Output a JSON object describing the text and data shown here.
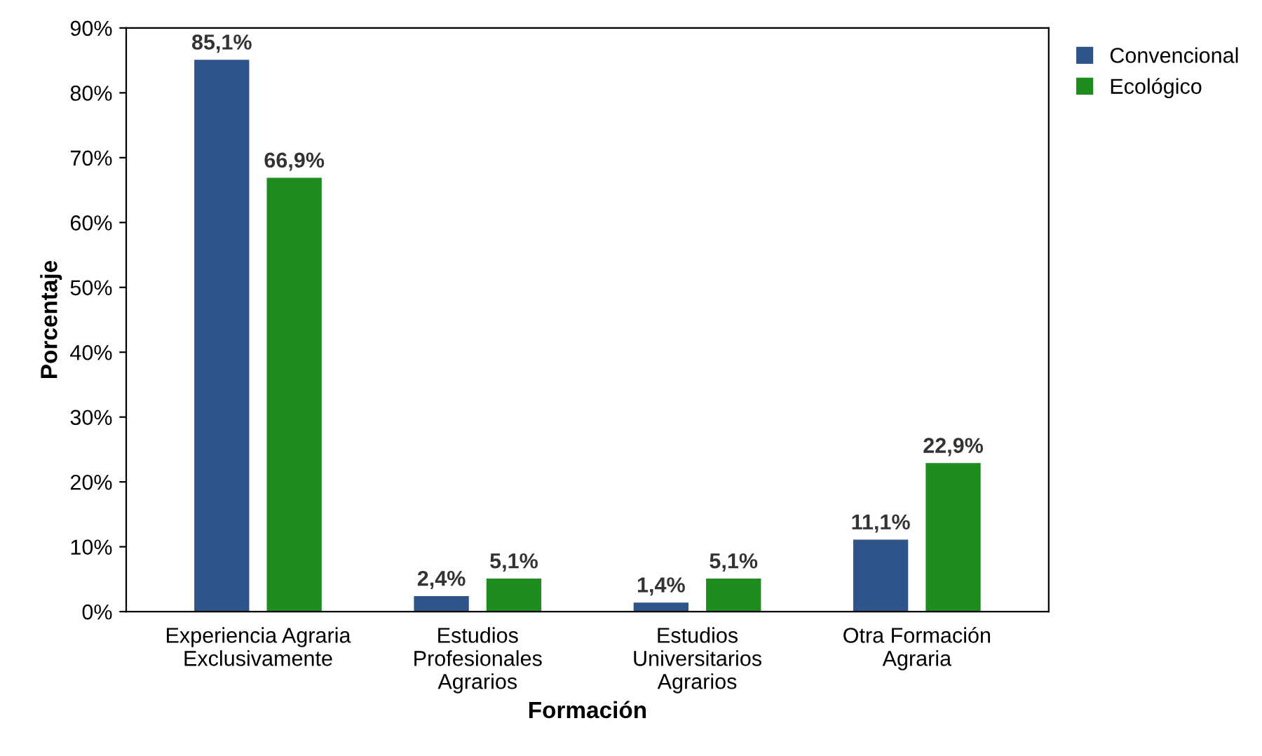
{
  "chart_data": {
    "type": "bar",
    "xlabel": "Formación",
    "ylabel": "Porcentaje",
    "categories": [
      "Experiencia Agraria\nExclusivamente",
      "Estudios\nProfesionales\nAgrarios",
      "Estudios\nUniversitarios\nAgrarios",
      "Otra Formación\nAgraria"
    ],
    "series": [
      {
        "name": "Convencional",
        "color": "#2f5489",
        "values": [
          85.1,
          2.4,
          1.4,
          11.1
        ],
        "value_labels": [
          "85,1%",
          "2,4%",
          "1,4%",
          "11,1%"
        ]
      },
      {
        "name": "Ecológico",
        "color": "#1e8c1e",
        "values": [
          66.9,
          5.1,
          5.1,
          22.9
        ],
        "value_labels": [
          "66,9%",
          "5,1%",
          "5,1%",
          "22,9%"
        ]
      }
    ],
    "ylim": [
      0,
      90
    ],
    "yticks": [
      {
        "value": 0,
        "label": "0%"
      },
      {
        "value": 10,
        "label": "10%"
      },
      {
        "value": 20,
        "label": "20%"
      },
      {
        "value": 30,
        "label": "30%"
      },
      {
        "value": 40,
        "label": "40%"
      },
      {
        "value": 50,
        "label": "50%"
      },
      {
        "value": 60,
        "label": "60%"
      },
      {
        "value": 70,
        "label": "70%"
      },
      {
        "value": 80,
        "label": "80%"
      },
      {
        "value": 90,
        "label": "90%"
      }
    ],
    "grid": false,
    "legend": "top right"
  }
}
